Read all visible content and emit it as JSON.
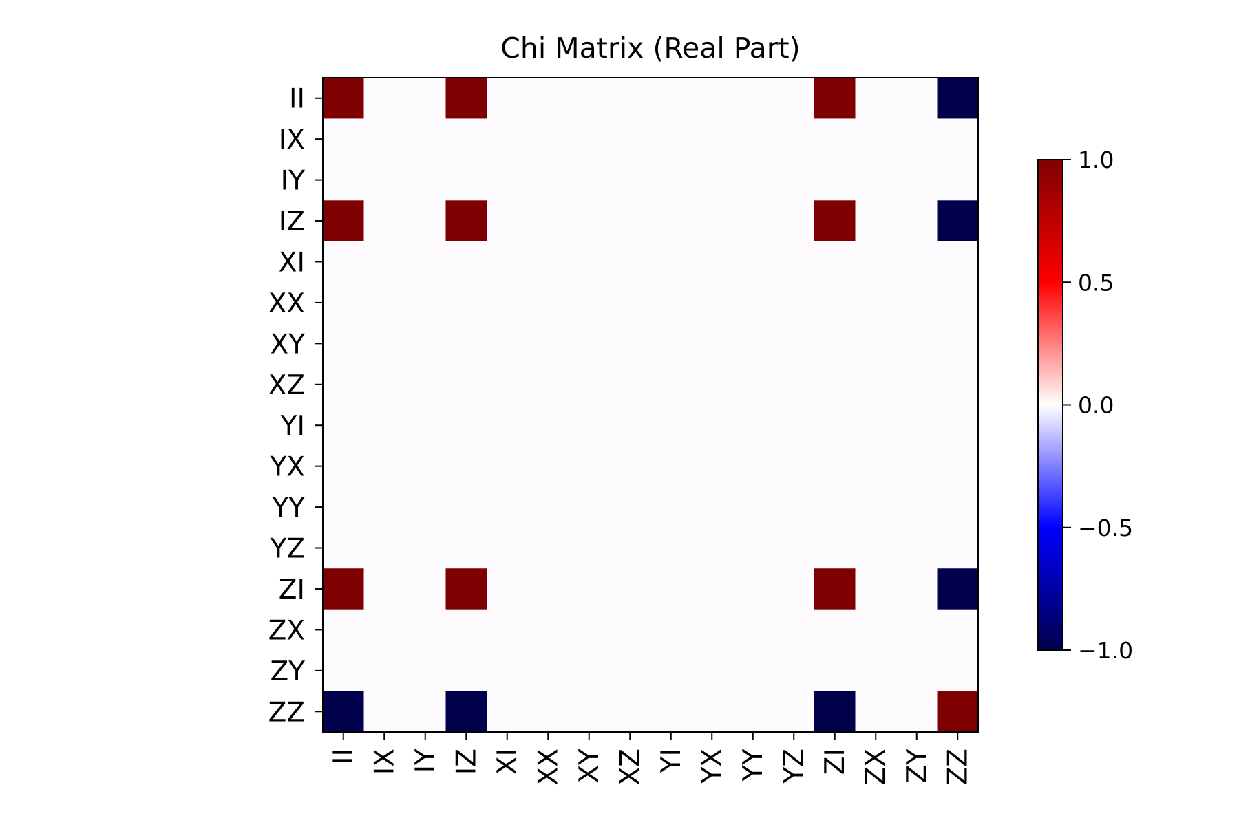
{
  "chart_data": {
    "type": "heatmap",
    "title": "Chi Matrix (Real Part)",
    "xlabel": "",
    "ylabel": "",
    "x_labels": [
      "II",
      "IX",
      "IY",
      "IZ",
      "XI",
      "XX",
      "XY",
      "XZ",
      "YI",
      "YX",
      "YY",
      "YZ",
      "ZI",
      "ZX",
      "ZY",
      "ZZ"
    ],
    "y_labels": [
      "II",
      "IX",
      "IY",
      "IZ",
      "XI",
      "XX",
      "XY",
      "XZ",
      "YI",
      "YX",
      "YY",
      "YZ",
      "ZI",
      "ZX",
      "ZY",
      "ZZ"
    ],
    "values": [
      [
        1,
        0,
        0,
        1,
        0,
        0,
        0,
        0,
        0,
        0,
        0,
        0,
        1,
        0,
        0,
        -1
      ],
      [
        0,
        0,
        0,
        0,
        0,
        0,
        0,
        0,
        0,
        0,
        0,
        0,
        0,
        0,
        0,
        0
      ],
      [
        0,
        0,
        0,
        0,
        0,
        0,
        0,
        0,
        0,
        0,
        0,
        0,
        0,
        0,
        0,
        0
      ],
      [
        1,
        0,
        0,
        1,
        0,
        0,
        0,
        0,
        0,
        0,
        0,
        0,
        1,
        0,
        0,
        -1
      ],
      [
        0,
        0,
        0,
        0,
        0,
        0,
        0,
        0,
        0,
        0,
        0,
        0,
        0,
        0,
        0,
        0
      ],
      [
        0,
        0,
        0,
        0,
        0,
        0,
        0,
        0,
        0,
        0,
        0,
        0,
        0,
        0,
        0,
        0
      ],
      [
        0,
        0,
        0,
        0,
        0,
        0,
        0,
        0,
        0,
        0,
        0,
        0,
        0,
        0,
        0,
        0
      ],
      [
        0,
        0,
        0,
        0,
        0,
        0,
        0,
        0,
        0,
        0,
        0,
        0,
        0,
        0,
        0,
        0
      ],
      [
        0,
        0,
        0,
        0,
        0,
        0,
        0,
        0,
        0,
        0,
        0,
        0,
        0,
        0,
        0,
        0
      ],
      [
        0,
        0,
        0,
        0,
        0,
        0,
        0,
        0,
        0,
        0,
        0,
        0,
        0,
        0,
        0,
        0
      ],
      [
        0,
        0,
        0,
        0,
        0,
        0,
        0,
        0,
        0,
        0,
        0,
        0,
        0,
        0,
        0,
        0
      ],
      [
        0,
        0,
        0,
        0,
        0,
        0,
        0,
        0,
        0,
        0,
        0,
        0,
        0,
        0,
        0,
        0
      ],
      [
        1,
        0,
        0,
        1,
        0,
        0,
        0,
        0,
        0,
        0,
        0,
        0,
        1,
        0,
        0,
        -1
      ],
      [
        0,
        0,
        0,
        0,
        0,
        0,
        0,
        0,
        0,
        0,
        0,
        0,
        0,
        0,
        0,
        0
      ],
      [
        0,
        0,
        0,
        0,
        0,
        0,
        0,
        0,
        0,
        0,
        0,
        0,
        0,
        0,
        0,
        0
      ],
      [
        -1,
        0,
        0,
        -1,
        0,
        0,
        0,
        0,
        0,
        0,
        0,
        0,
        -1,
        0,
        0,
        1
      ]
    ],
    "colorbar": {
      "vmin": -1.0,
      "vmax": 1.0,
      "ticks": [
        1.0,
        0.5,
        0.0,
        -0.5,
        -1.0
      ],
      "tick_labels": [
        "1.0",
        "0.5",
        "0.0",
        "−0.5",
        "−1.0"
      ],
      "colormap": "seismic",
      "colors": {
        "min": "#00004c",
        "low": "#0000ff",
        "mid": "#ffffff",
        "high": "#ff0000",
        "max": "#7f0000"
      }
    },
    "grid": false
  }
}
